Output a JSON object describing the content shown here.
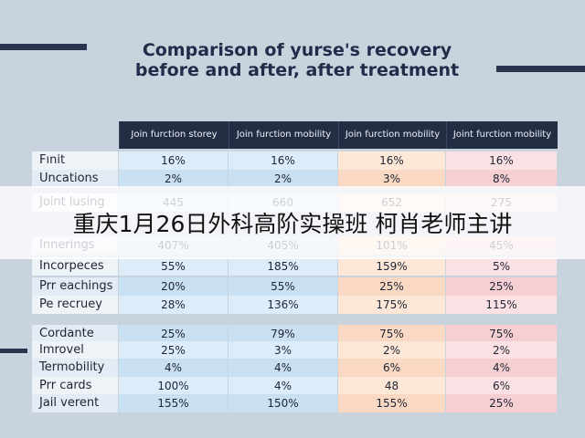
{
  "title": [
    "Comparison of yurse's recovery",
    "before and after, after treatment"
  ],
  "table": {
    "header": [
      "Join furction storey",
      "Join furction mobility",
      "Join furction mobility",
      "Joint furction mobility"
    ],
    "rows": [
      [
        "Fınit",
        "16%",
        "16%",
        "16%",
        "16%"
      ],
      [
        "Uncations",
        "2%",
        "2%",
        "3%",
        "8%"
      ],
      [
        "Joint lusing",
        "445",
        "660",
        "652",
        "275"
      ],
      [
        "Innerings",
        "407%",
        "405%",
        "101%",
        "45%"
      ],
      [
        "Incorpeces",
        "55%",
        "185%",
        "159%",
        "5%"
      ],
      [
        "Prr eachings",
        "20%",
        "55%",
        "25%",
        "25%"
      ],
      [
        "Pe recruey",
        "28%",
        "136%",
        "175%",
        "115%"
      ],
      [
        "Cordante",
        "25%",
        "79%",
        "75%",
        "75%"
      ],
      [
        "Imrovel",
        "25%",
        "3%",
        "2%",
        "2%"
      ],
      [
        "Termobility",
        "4%",
        "4%",
        "6%",
        "4%"
      ],
      [
        "Prr cards",
        "100%",
        "4%",
        "48",
        "6%"
      ],
      [
        "Jail verent",
        "155%",
        "150%",
        "155%",
        "25%"
      ]
    ]
  },
  "banner": "重庆1月26日外科高阶实操班 柯肖老师主讲"
}
